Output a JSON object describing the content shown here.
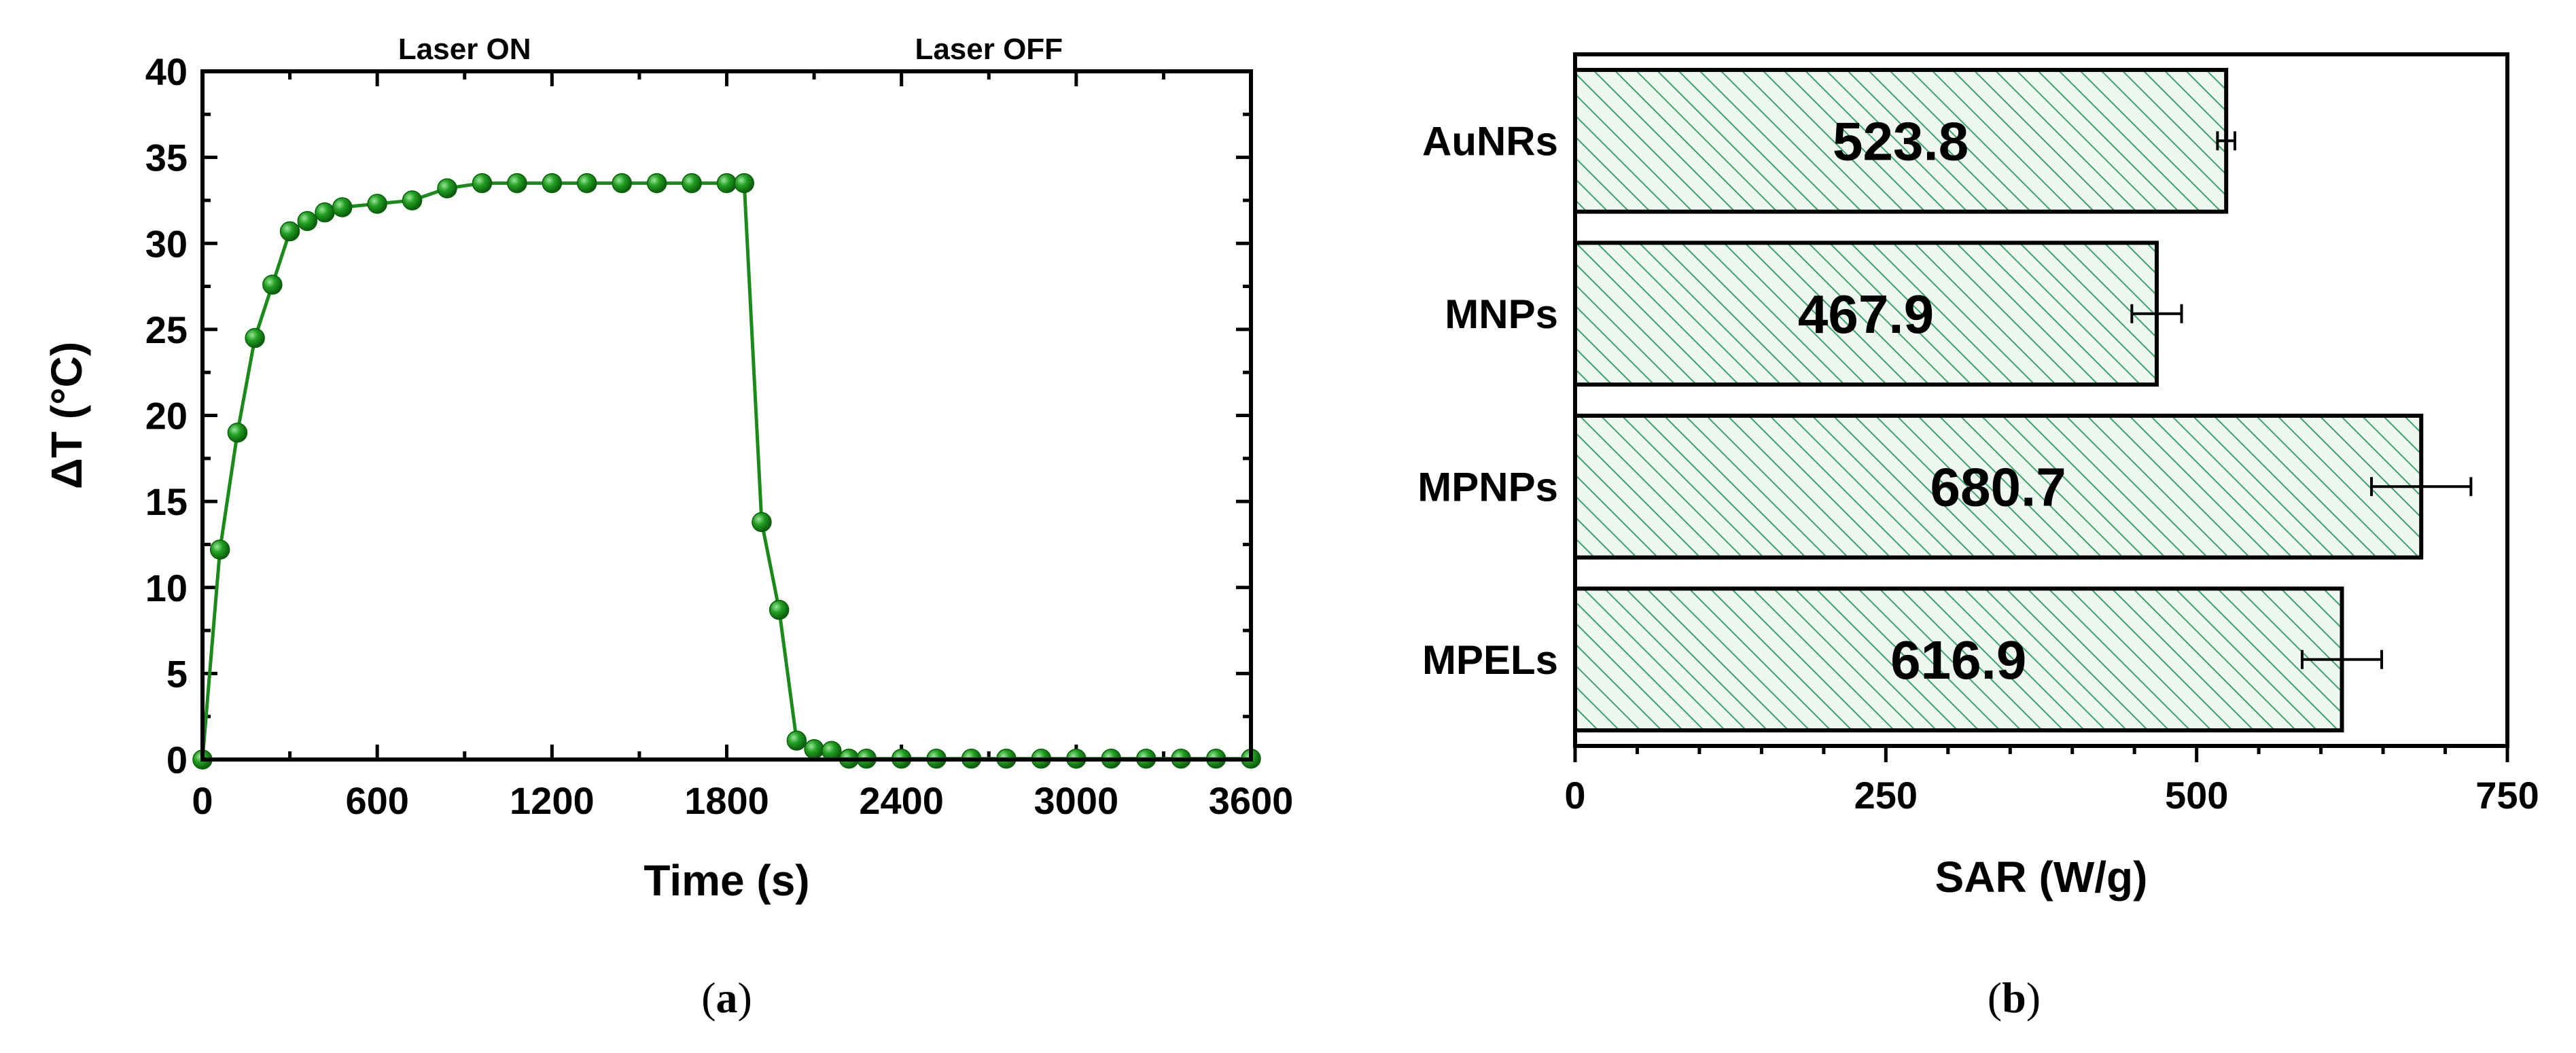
{
  "colors": {
    "line": "#1a8a1a",
    "marker_fill": "#22a022",
    "marker_edge": "#0a5f0a",
    "bar_hatch": "#3aa56a",
    "bar_bg": "#eef8f1",
    "bar_edge": "#000000"
  },
  "panels": {
    "a": {
      "open": "(",
      "letter": "a",
      "close": ")"
    },
    "b": {
      "open": "(",
      "letter": "b",
      "close": ")"
    }
  },
  "chart_data": [
    {
      "type": "line",
      "xlabel": "Time (s)",
      "ylabel": "ΔT (°C)",
      "xlim": [
        0,
        3600
      ],
      "ylim": [
        0,
        40
      ],
      "xticks": [
        0,
        600,
        1200,
        1800,
        2400,
        3000,
        3600
      ],
      "yticks": [
        0,
        5,
        10,
        15,
        20,
        25,
        30,
        35,
        40
      ],
      "annotations": [
        "Laser ON",
        "Laser OFF"
      ],
      "series": [
        {
          "x": [
            0,
            60,
            120,
            180,
            240,
            300,
            360,
            420,
            480,
            600,
            720,
            840,
            960,
            1080,
            1200,
            1320,
            1440,
            1560,
            1680,
            1800,
            1860,
            1920,
            1980,
            2040,
            2100,
            2160,
            2220,
            2280,
            2400,
            2520,
            2640,
            2760,
            2880,
            3000,
            3120,
            3240,
            3360,
            3480,
            3600
          ],
          "y": [
            0,
            12.2,
            19.0,
            24.5,
            27.6,
            30.7,
            31.3,
            31.8,
            32.1,
            32.3,
            32.5,
            33.2,
            33.5,
            33.5,
            33.5,
            33.5,
            33.5,
            33.5,
            33.5,
            33.5,
            33.5,
            13.8,
            8.7,
            1.1,
            0.6,
            0.5,
            0.05,
            0.05,
            0.05,
            0.05,
            0.05,
            0.05,
            0.05,
            0.05,
            0.05,
            0.05,
            0.05,
            0.05,
            0.05
          ]
        }
      ]
    },
    {
      "type": "bar",
      "orientation": "horizontal",
      "xlabel": "SAR (W/g)",
      "xlim": [
        0,
        750
      ],
      "xticks": [
        0,
        250,
        500,
        750
      ],
      "categories": [
        "AuNRs",
        "MNPs",
        "MPNPs",
        "MPELs"
      ],
      "values": [
        523.8,
        467.9,
        680.7,
        616.9
      ],
      "value_labels": [
        "523.8",
        "467.9",
        "680.7",
        "616.9"
      ],
      "errors": [
        7,
        20,
        40,
        32
      ]
    }
  ]
}
